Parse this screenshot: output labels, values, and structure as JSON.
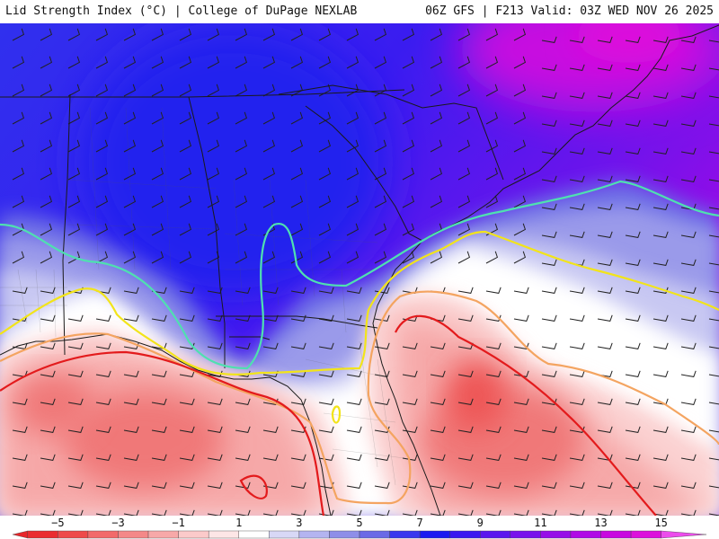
{
  "header": {
    "title_left": "Lid Strength Index (°C) | College of DuPage NEXLAB",
    "title_right": "06Z GFS | F213 Valid: 03Z WED NOV 26 2025"
  },
  "colorbar": {
    "labels": [
      "−5",
      "−3",
      "−1",
      "1",
      "3",
      "5",
      "7",
      "9",
      "11",
      "13",
      "15"
    ],
    "values": [
      -5,
      -3,
      -1,
      1,
      3,
      5,
      7,
      9,
      11,
      13,
      15
    ],
    "range": [
      -6.5,
      16.5
    ],
    "bins": [
      {
        "from": -6.5,
        "to": -6,
        "color": "#e8252a"
      },
      {
        "from": -6,
        "to": -5,
        "color": "#ea2c2f"
      },
      {
        "from": -5,
        "to": -4,
        "color": "#ee4a4a"
      },
      {
        "from": -4,
        "to": -3,
        "color": "#f26a6a"
      },
      {
        "from": -3,
        "to": -2,
        "color": "#f48888"
      },
      {
        "from": -2,
        "to": -1,
        "color": "#f7a8a8"
      },
      {
        "from": -1,
        "to": 0,
        "color": "#fbcaca"
      },
      {
        "from": 0,
        "to": 1,
        "color": "#fde6e6"
      },
      {
        "from": 1,
        "to": 2,
        "color": "#ffffff"
      },
      {
        "from": 2,
        "to": 3,
        "color": "#d8d8f6"
      },
      {
        "from": 3,
        "to": 4,
        "color": "#b4b4f0"
      },
      {
        "from": 4,
        "to": 5,
        "color": "#8e8ee8"
      },
      {
        "from": 5,
        "to": 6,
        "color": "#6a6ae6"
      },
      {
        "from": 6,
        "to": 7,
        "color": "#3838ee"
      },
      {
        "from": 7,
        "to": 8,
        "color": "#1a1af0"
      },
      {
        "from": 8,
        "to": 9,
        "color": "#3a18f0"
      },
      {
        "from": 9,
        "to": 10,
        "color": "#5a16ee"
      },
      {
        "from": 10,
        "to": 11,
        "color": "#7812ec"
      },
      {
        "from": 11,
        "to": 12,
        "color": "#960ee8"
      },
      {
        "from": 12,
        "to": 13,
        "color": "#b00ae6"
      },
      {
        "from": 13,
        "to": 14,
        "color": "#c808e0"
      },
      {
        "from": 14,
        "to": 15,
        "color": "#dc10dc"
      },
      {
        "from": 15,
        "to": 16.5,
        "color": "#ec4cec"
      }
    ]
  },
  "map": {
    "contours": {
      "red": "#e31a1c",
      "orange": "#f4a460",
      "yellow": "#f2e41a",
      "cyan": "#4fe0b0"
    }
  }
}
